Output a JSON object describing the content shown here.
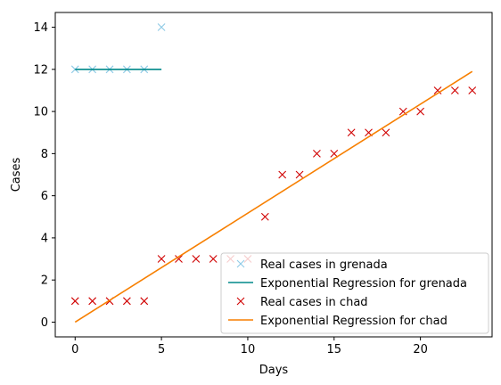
{
  "chart_data": {
    "type": "line",
    "title": "",
    "xlabel": "Days",
    "ylabel": "Cases",
    "xlim": [
      -1.15,
      24.15
    ],
    "ylim": [
      -0.7,
      14.7
    ],
    "xticks": [
      0,
      5,
      10,
      15,
      20
    ],
    "yticks": [
      0,
      2,
      4,
      6,
      8,
      10,
      12,
      14
    ],
    "grid": false,
    "legend_position": "lower-right",
    "series": [
      {
        "name": "Real cases in grenada",
        "kind": "scatter",
        "marker": "x",
        "color": "#8ecae6",
        "x": [
          0,
          1,
          2,
          3,
          4,
          5
        ],
        "y": [
          12,
          12,
          12,
          12,
          12,
          14
        ]
      },
      {
        "name": "Exponential Regression for grenada",
        "kind": "line",
        "color": "#00898a",
        "x": [
          0,
          5
        ],
        "y": [
          12,
          12
        ]
      },
      {
        "name": "Real cases in chad",
        "kind": "scatter",
        "marker": "x",
        "color": "#d00000",
        "x": [
          0,
          1,
          2,
          3,
          4,
          5,
          6,
          7,
          8,
          9,
          10,
          11,
          12,
          13,
          14,
          15,
          16,
          17,
          18,
          19,
          20,
          21,
          22,
          23
        ],
        "y": [
          1,
          1,
          1,
          1,
          1,
          3,
          3,
          3,
          3,
          3,
          3,
          5,
          7,
          7,
          8,
          8,
          9,
          9,
          9,
          10,
          10,
          11,
          11,
          11
        ]
      },
      {
        "name": "Exponential Regression for chad",
        "kind": "line",
        "color": "#f77f00",
        "x": [
          0,
          23
        ],
        "y": [
          0,
          11.9
        ]
      }
    ]
  }
}
